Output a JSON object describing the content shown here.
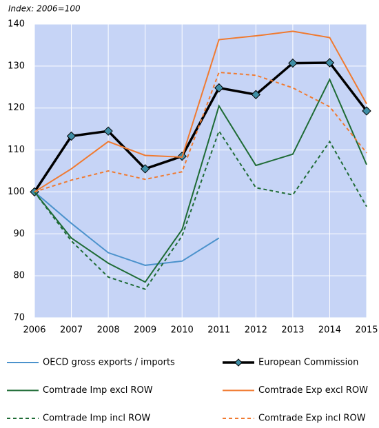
{
  "chart_data": {
    "type": "line",
    "subtitle": "Index: 2006=100",
    "x": [
      2006,
      2007,
      2008,
      2009,
      2010,
      2011,
      2012,
      2013,
      2014,
      2015
    ],
    "xlim": [
      2006,
      2015
    ],
    "xticks": [
      2006,
      2007,
      2008,
      2009,
      2010,
      2011,
      2012,
      2013,
      2014,
      2015
    ],
    "ylim": [
      70,
      140
    ],
    "yticks": [
      70,
      80,
      90,
      100,
      110,
      120,
      130,
      140
    ],
    "grid": true,
    "background": "#c6d4f6",
    "series": [
      {
        "name": "OECD gross exports / imports",
        "color": "#4b92cc",
        "dash": false,
        "values": [
          100,
          92.5,
          85.5,
          82.5,
          83.5,
          89,
          null,
          null,
          null,
          null
        ]
      },
      {
        "name": "European Commission",
        "color": "#000000",
        "dash": false,
        "marker": "diamond",
        "marker_color": "#3f8ea6",
        "values": [
          100,
          113.3,
          114.5,
          105.5,
          108.5,
          124.8,
          123.2,
          130.7,
          130.8,
          119.3
        ]
      },
      {
        "name": "Comtrade Imp excl ROW",
        "color": "#1e6b35",
        "dash": false,
        "values": [
          100,
          89,
          83,
          78.5,
          91,
          120.5,
          106.3,
          109,
          126.8,
          106.5
        ]
      },
      {
        "name": "Comtrade Exp excl ROW",
        "color": "#f07a30",
        "dash": false,
        "values": [
          100,
          105.5,
          112,
          108.7,
          108.3,
          136.3,
          137.2,
          138.3,
          136.8,
          121
        ]
      },
      {
        "name": "Comtrade Imp incl ROW",
        "color": "#1e6b35",
        "dash": true,
        "values": [
          100,
          88.3,
          79.7,
          76.8,
          89.5,
          114.5,
          101,
          99.3,
          112,
          96.5
        ]
      },
      {
        "name": "Comtrade Exp incl ROW",
        "color": "#f07a30",
        "dash": true,
        "values": [
          100,
          102.8,
          105,
          103,
          104.8,
          128.5,
          127.8,
          124.8,
          120.3,
          109.3
        ]
      }
    ]
  }
}
